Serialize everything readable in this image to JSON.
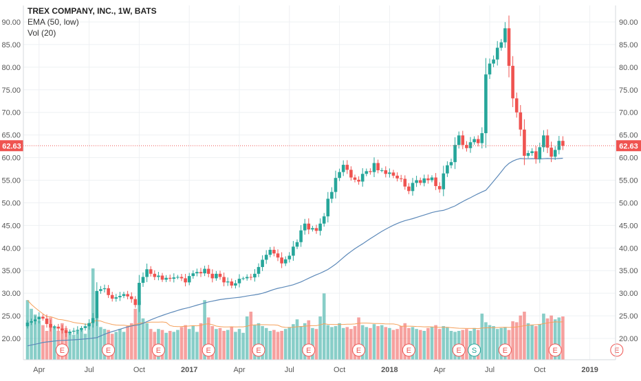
{
  "chart_data": {
    "type": "candlestick",
    "title": "TREX COMPANY, INC., 1W, BATS",
    "indicators": [
      "EMA (50, low)",
      "Vol (20)"
    ],
    "last_price": "62.63",
    "y_ticks": [
      "20.00",
      "25.00",
      "30.00",
      "35.00",
      "40.00",
      "45.00",
      "50.00",
      "55.00",
      "60.00",
      "65.00",
      "70.00",
      "75.00",
      "80.00",
      "85.00",
      "90.00"
    ],
    "ylim": [
      15,
      93
    ],
    "x_ticks": [
      "Apr",
      "Jul",
      "Oct",
      "2017",
      "Apr",
      "Jul",
      "Oct",
      "2018",
      "Apr",
      "Jul",
      "Oct",
      "2019"
    ],
    "x_tick_index": [
      3,
      16,
      29,
      42,
      55,
      68,
      81,
      94,
      107,
      120,
      133,
      146
    ],
    "earnings_markers": [
      "E",
      "E",
      "E",
      "E",
      "E",
      "E",
      "E",
      "E",
      "E",
      "S",
      "E",
      "E",
      "E"
    ],
    "earnings_index": [
      9,
      21,
      34,
      47,
      60,
      73,
      86,
      99,
      112,
      116,
      124,
      137,
      153
    ],
    "colors": {
      "up": "#26a69a",
      "down": "#ef5350",
      "ema": "#5b88b8",
      "vol_ma": "#f5a05a",
      "price_line": "#ef5350"
    },
    "close": [
      23.5,
      23.8,
      24.2,
      24.8,
      24.4,
      23.2,
      22.4,
      22.6,
      22.2,
      21.8,
      21.2,
      21.5,
      21.7,
      21.9,
      22.3,
      22.7,
      23.4,
      24.5,
      30.5,
      30.9,
      31.1,
      29.6,
      28.8,
      29.1,
      29.4,
      29.8,
      29.3,
      28.7,
      27.4,
      32.3,
      33.6,
      35.3,
      34.3,
      33.6,
      33.9,
      33.0,
      33.4,
      33.2,
      33.5,
      33.6,
      33.3,
      32.4,
      33.8,
      34.4,
      34.7,
      34.4,
      35.4,
      34.3,
      33.3,
      34.3,
      33.6,
      32.4,
      32.6,
      31.7,
      32.2,
      33.2,
      33.3,
      33.6,
      33.5,
      34.3,
      35.8,
      37.4,
      38.5,
      39.6,
      38.8,
      37.9,
      36.6,
      37.5,
      38.3,
      40.3,
      41.3,
      43.9,
      45.4,
      44.1,
      44.4,
      43.8,
      45.4,
      47.0,
      50.9,
      52.4,
      55.5,
      56.8,
      58.4,
      57.3,
      55.6,
      55.1,
      54.7,
      56.4,
      57.0,
      56.8,
      58.8,
      57.2,
      57.2,
      56.4,
      56.7,
      56.0,
      55.4,
      55.3,
      53.6,
      52.6,
      54.4,
      55.0,
      54.4,
      55.4,
      55.0,
      55.6,
      53.7,
      53.0,
      56.5,
      58.3,
      59.0,
      62.8,
      64.9,
      62.8,
      62.1,
      63.4,
      64.1,
      63.2,
      65.4,
      78.4,
      80.8,
      81.7,
      84.3,
      85.5,
      88.6,
      80.3,
      73.1,
      70.0,
      66.2,
      60.4,
      61.0,
      61.4,
      59.7,
      62.3,
      64.9,
      62.2,
      60.2,
      61.7,
      63.7,
      62.6
    ],
    "volume_rel": [
      0.62,
      0.53,
      0.47,
      0.41,
      0.36,
      0.3,
      0.44,
      0.35,
      0.3,
      0.38,
      0.33,
      0.29,
      0.26,
      0.3,
      0.31,
      0.27,
      0.37,
      0.95,
      0.48,
      0.34,
      0.32,
      0.31,
      0.27,
      0.29,
      0.32,
      0.29,
      0.35,
      0.38,
      0.53,
      0.61,
      0.43,
      0.38,
      0.32,
      0.29,
      0.32,
      0.31,
      0.28,
      0.3,
      0.29,
      0.31,
      0.34,
      0.36,
      0.32,
      0.35,
      0.29,
      0.38,
      0.62,
      0.44,
      0.35,
      0.32,
      0.33,
      0.3,
      0.31,
      0.34,
      0.29,
      0.32,
      0.28,
      0.45,
      0.5,
      0.36,
      0.38,
      0.35,
      0.33,
      0.3,
      0.31,
      0.29,
      0.3,
      0.32,
      0.34,
      0.37,
      0.42,
      0.35,
      0.38,
      0.41,
      0.33,
      0.32,
      0.45,
      0.69,
      0.36,
      0.34,
      0.35,
      0.38,
      0.33,
      0.34,
      0.32,
      0.35,
      0.44,
      0.36,
      0.34,
      0.33,
      0.37,
      0.35,
      0.36,
      0.34,
      0.33,
      0.31,
      0.32,
      0.35,
      0.38,
      0.33,
      0.34,
      0.32,
      0.31,
      0.3,
      0.33,
      0.34,
      0.36,
      0.32,
      0.35,
      0.34,
      0.3,
      0.29,
      0.3,
      0.31,
      0.32,
      0.3,
      0.33,
      0.31,
      0.48,
      0.39,
      0.36,
      0.35,
      0.32,
      0.33,
      0.34,
      0.31,
      0.4,
      0.39,
      0.46,
      0.5,
      0.38,
      0.36,
      0.35,
      0.37,
      0.48,
      0.43,
      0.46,
      0.42,
      0.44,
      0.45
    ]
  }
}
